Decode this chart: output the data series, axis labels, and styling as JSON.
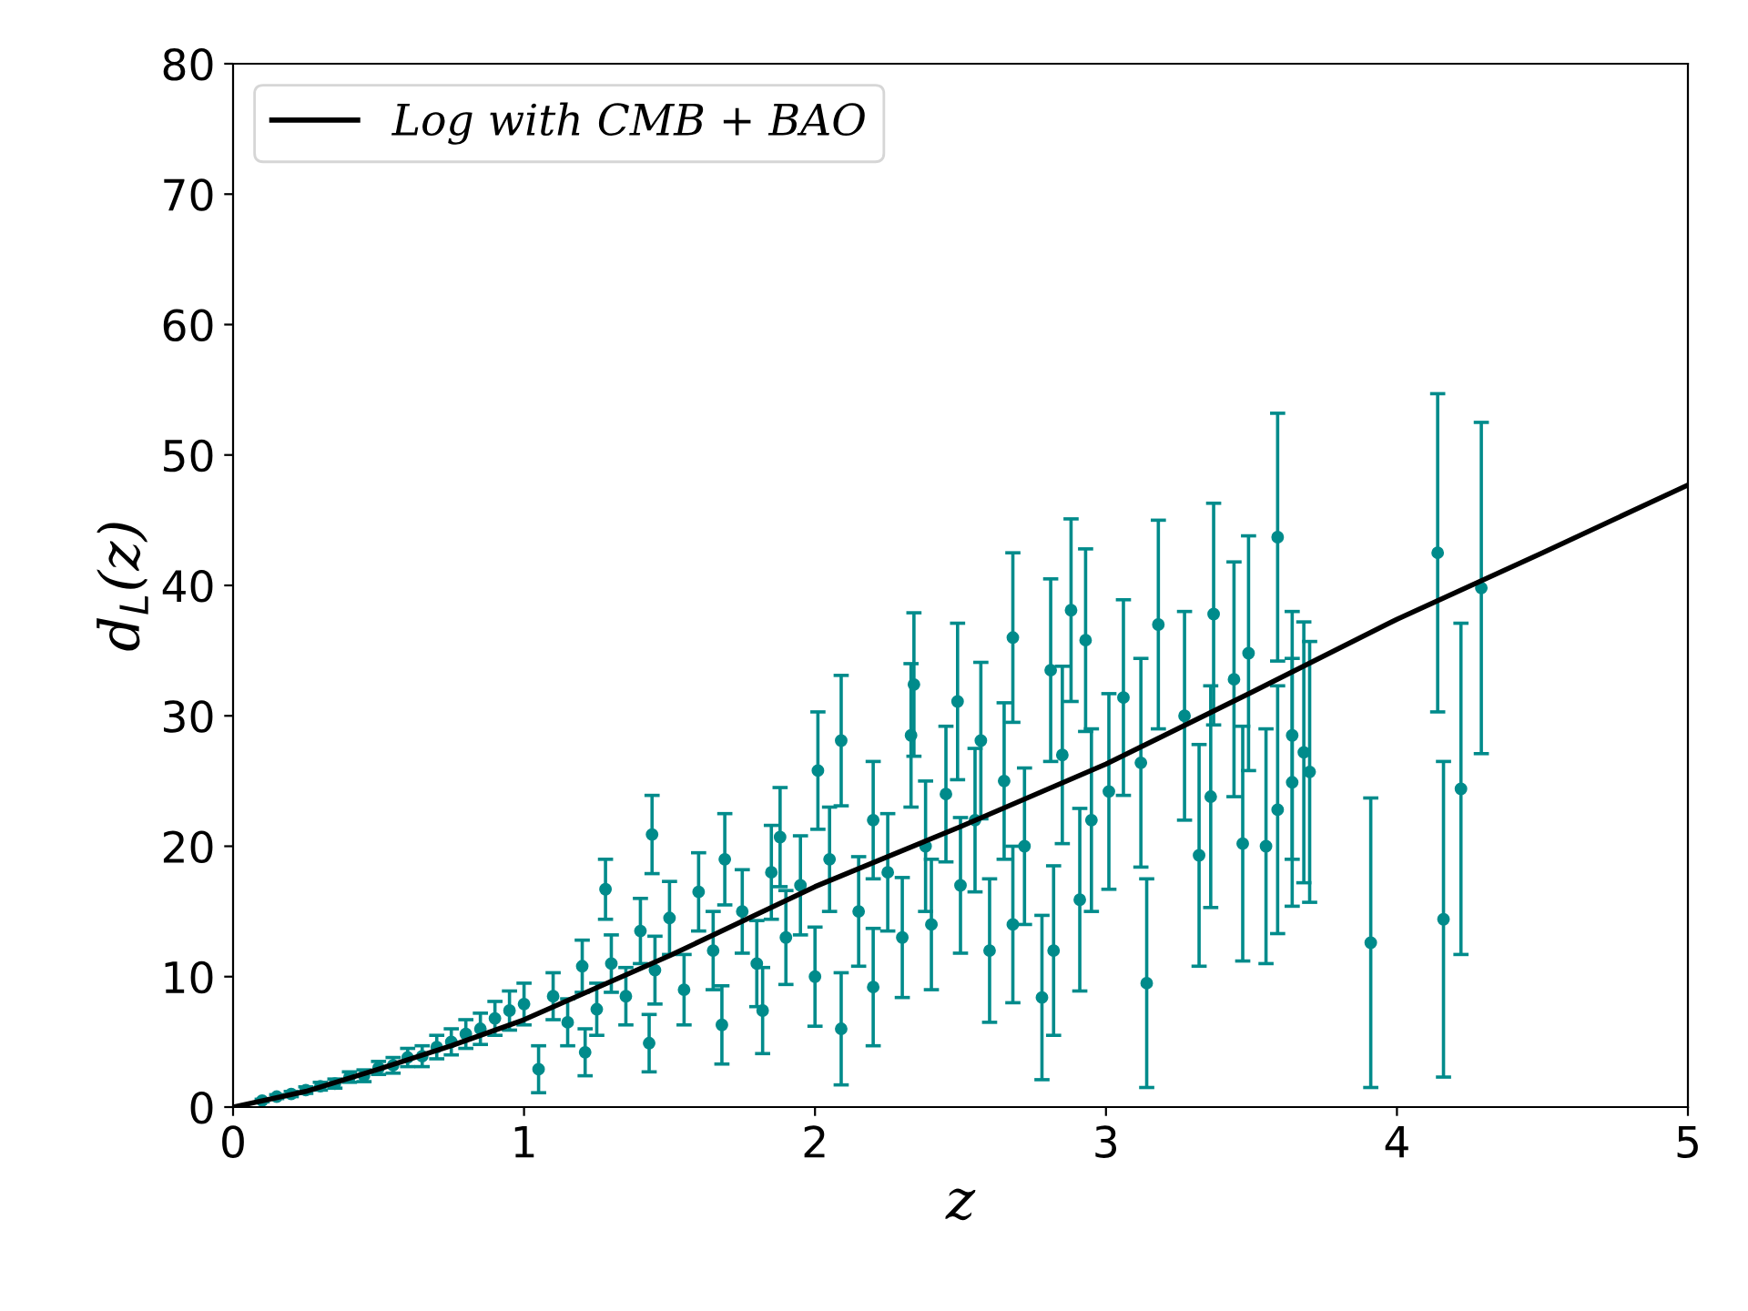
{
  "chart_data": {
    "type": "scatter",
    "xlabel": "z",
    "ylabel": "d$_{L}$(z)",
    "xlim": [
      0,
      5
    ],
    "ylim": [
      0,
      80
    ],
    "xticks": [
      0,
      1,
      2,
      3,
      4,
      5
    ],
    "yticks": [
      0,
      10,
      20,
      30,
      40,
      50,
      60,
      70,
      80
    ],
    "grid": false,
    "legend": "top left",
    "series": [
      {
        "color": "#008b8b",
        "marker": "circle",
        "x": [
          0.1,
          0.15,
          0.2,
          0.25,
          0.3,
          0.35,
          0.4,
          0.45,
          0.5,
          0.55,
          0.6,
          0.65,
          0.7,
          0.75,
          0.8,
          0.85,
          0.9,
          0.95,
          1.0,
          1.05,
          1.1,
          1.15,
          1.2,
          1.21,
          1.25,
          1.28,
          1.3,
          1.35,
          1.4,
          1.43,
          1.44,
          1.45,
          1.5,
          1.55,
          1.6,
          1.65,
          1.68,
          1.69,
          1.75,
          1.8,
          1.82,
          1.85,
          1.88,
          1.9,
          1.95,
          2.0,
          2.01,
          2.05,
          2.09,
          2.09,
          2.15,
          2.2,
          2.2,
          2.25,
          2.3,
          2.33,
          2.34,
          2.38,
          2.4,
          2.45,
          2.49,
          2.5,
          2.55,
          2.57,
          2.6,
          2.65,
          2.68,
          2.68,
          2.72,
          2.78,
          2.81,
          2.82,
          2.85,
          2.88,
          2.91,
          2.93,
          2.95,
          3.01,
          3.06,
          3.12,
          3.14,
          3.18,
          3.27,
          3.32,
          3.36,
          3.37,
          3.44,
          3.47,
          3.49,
          3.55,
          3.59,
          3.59,
          3.64,
          3.64,
          3.68,
          3.7,
          3.91,
          4.14,
          4.16,
          4.22,
          4.29
        ],
        "values": [
          0.5,
          0.8,
          1.0,
          1.3,
          1.6,
          1.8,
          2.3,
          2.4,
          3.0,
          3.2,
          3.8,
          3.9,
          4.6,
          5.0,
          5.6,
          6.0,
          6.8,
          7.4,
          7.9,
          2.9,
          8.5,
          6.5,
          10.8,
          4.2,
          7.5,
          16.7,
          11,
          8.5,
          13.5,
          4.9,
          20.9,
          10.5,
          14.5,
          9,
          16.5,
          12,
          6.3,
          19,
          15,
          11,
          7.4,
          18,
          20.7,
          13,
          17,
          10,
          25.8,
          19,
          28.1,
          6.0,
          15,
          9.2,
          22,
          18,
          13,
          28.5,
          32.4,
          20,
          14,
          24,
          31.1,
          17,
          22,
          28.1,
          12,
          25,
          36,
          14,
          20,
          8.4,
          33.5,
          12,
          27,
          38.1,
          15.9,
          35.8,
          22,
          24.2,
          31.4,
          26.4,
          9.5,
          37,
          30,
          19.3,
          23.8,
          37.8,
          32.8,
          20.2,
          34.8,
          20,
          22.8,
          43.7,
          24.9,
          28.5,
          27.2,
          25.7,
          12.6,
          42.5,
          14.4,
          24.4,
          39.8
        ],
        "errors": [
          0.1,
          0.15,
          0.2,
          0.25,
          0.3,
          0.35,
          0.4,
          0.45,
          0.5,
          0.6,
          0.7,
          0.8,
          0.9,
          1.0,
          1.1,
          1.2,
          1.3,
          1.5,
          1.6,
          1.8,
          1.8,
          1.8,
          2,
          1.8,
          2,
          2.3,
          2.2,
          2.2,
          2.5,
          2.2,
          3,
          2.6,
          2.8,
          2.7,
          3,
          3,
          3,
          3.5,
          3.2,
          3.3,
          3.3,
          3.6,
          3.8,
          3.6,
          3.8,
          3.8,
          4.5,
          4,
          5,
          4.3,
          4.2,
          4.5,
          4.5,
          4.5,
          4.6,
          5.5,
          5.5,
          5,
          5,
          5.2,
          6,
          5.2,
          5.5,
          6,
          5.5,
          6,
          6.5,
          6,
          6,
          6.3,
          7,
          6.5,
          6.8,
          7,
          7,
          7,
          7,
          7.5,
          7.5,
          8,
          8,
          8,
          8,
          8.5,
          8.5,
          8.5,
          9,
          9,
          9,
          9,
          9.5,
          9.5,
          9.5,
          9.5,
          10,
          10,
          11.1,
          12.2,
          12.1,
          12.7,
          12.7
        ]
      },
      {
        "type": "line",
        "name": "Log with CMB + BAO",
        "color": "#000000",
        "marker": "none",
        "line_style": "solid",
        "x": [
          0,
          0.25,
          0.5,
          0.75,
          1,
          1.5,
          2,
          2.5,
          3,
          3.5,
          4,
          4.5,
          5
        ],
        "values": [
          0,
          1.2,
          2.9,
          4.7,
          6.7,
          11.6,
          16.9,
          21.5,
          26.3,
          31.8,
          37.4,
          42.5,
          47.7
        ]
      }
    ]
  }
}
